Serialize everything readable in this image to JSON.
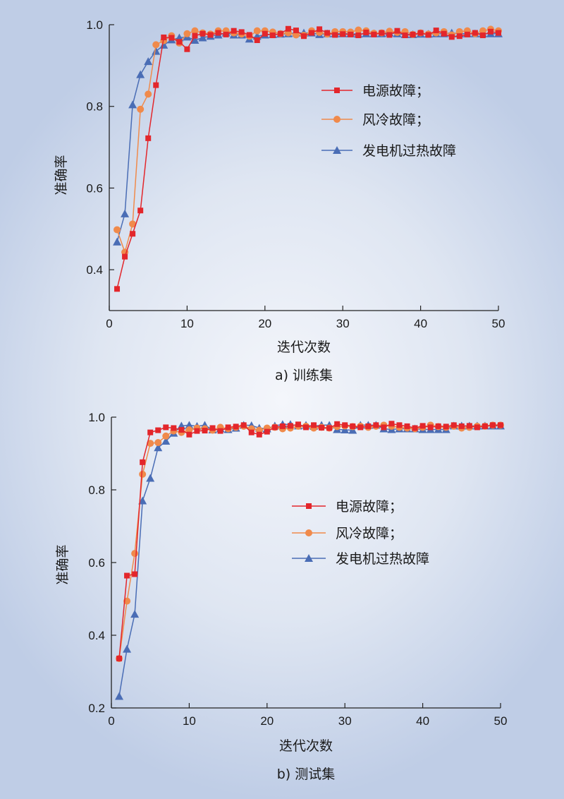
{
  "chart_data": [
    {
      "type": "line",
      "caption": "a) 训练集",
      "xlabel": "迭代次数",
      "ylabel": "准确率",
      "xlim": [
        0,
        50
      ],
      "ylim": [
        0.3,
        1.0
      ],
      "xticks": [
        0,
        10,
        20,
        30,
        40,
        50
      ],
      "yticks": [
        0.4,
        0.6,
        0.8,
        1.0
      ],
      "ytick_labels": [
        "0.4",
        "0.6",
        "0.8",
        "1.0"
      ],
      "legend_position": "right",
      "series": [
        {
          "name": "电源故障；",
          "color": "#e3262b",
          "marker": "square",
          "x": [
            1,
            2,
            3,
            4,
            5,
            6,
            7,
            8,
            9,
            10,
            11,
            12,
            13,
            14,
            15,
            16,
            17,
            18,
            19,
            20,
            21,
            22,
            23,
            24,
            25,
            26,
            27,
            28,
            29,
            30,
            31,
            32,
            33,
            34,
            35,
            36,
            37,
            38,
            39,
            40,
            41,
            42,
            43,
            44,
            45,
            46,
            47,
            48,
            49,
            50
          ],
          "values": [
            0.353,
            0.432,
            0.488,
            0.545,
            0.722,
            0.852,
            0.969,
            0.968,
            0.958,
            0.94,
            0.973,
            0.978,
            0.975,
            0.98,
            0.976,
            0.985,
            0.982,
            0.975,
            0.962,
            0.978,
            0.974,
            0.978,
            0.99,
            0.986,
            0.972,
            0.98,
            0.989,
            0.98,
            0.975,
            0.977,
            0.976,
            0.974,
            0.981,
            0.976,
            0.98,
            0.975,
            0.985,
            0.974,
            0.976,
            0.98,
            0.975,
            0.986,
            0.978,
            0.97,
            0.972,
            0.976,
            0.98,
            0.974,
            0.983,
            0.98
          ]
        },
        {
          "name": "风冷故障；",
          "color": "#f08a4b",
          "marker": "circle",
          "x": [
            1,
            2,
            3,
            4,
            5,
            6,
            7,
            8,
            9,
            10,
            11,
            12,
            13,
            14,
            15,
            16,
            17,
            18,
            19,
            20,
            21,
            22,
            23,
            24,
            25,
            26,
            27,
            28,
            29,
            30,
            31,
            32,
            33,
            34,
            35,
            36,
            37,
            38,
            39,
            40,
            41,
            42,
            43,
            44,
            45,
            46,
            47,
            48,
            49,
            50
          ],
          "values": [
            0.498,
            0.443,
            0.512,
            0.793,
            0.83,
            0.951,
            0.961,
            0.973,
            0.955,
            0.978,
            0.985,
            0.98,
            0.977,
            0.985,
            0.985,
            0.98,
            0.977,
            0.972,
            0.985,
            0.985,
            0.982,
            0.978,
            0.98,
            0.975,
            0.974,
            0.985,
            0.981,
            0.977,
            0.983,
            0.983,
            0.982,
            0.987,
            0.985,
            0.979,
            0.98,
            0.984,
            0.981,
            0.983,
            0.976,
            0.98,
            0.977,
            0.98,
            0.983,
            0.975,
            0.983,
            0.985,
            0.978,
            0.985,
            0.989,
            0.985
          ]
        },
        {
          "name": "发电机过热故障",
          "color": "#4a6db5",
          "marker": "triangle",
          "x": [
            1,
            2,
            3,
            4,
            5,
            6,
            7,
            8,
            9,
            10,
            11,
            12,
            13,
            14,
            15,
            16,
            17,
            18,
            19,
            20,
            21,
            22,
            23,
            24,
            25,
            26,
            27,
            28,
            29,
            30,
            31,
            32,
            33,
            34,
            35,
            36,
            37,
            38,
            39,
            40,
            41,
            42,
            43,
            44,
            45,
            46,
            47,
            48,
            49,
            50
          ],
          "values": [
            0.468,
            0.537,
            0.804,
            0.878,
            0.91,
            0.935,
            0.95,
            0.963,
            0.968,
            0.97,
            0.962,
            0.968,
            0.972,
            0.975,
            0.98,
            0.975,
            0.975,
            0.965,
            0.972,
            0.975,
            0.976,
            0.977,
            0.978,
            0.98,
            0.98,
            0.98,
            0.976,
            0.978,
            0.978,
            0.978,
            0.978,
            0.977,
            0.978,
            0.978,
            0.978,
            0.98,
            0.978,
            0.976,
            0.976,
            0.977,
            0.977,
            0.978,
            0.978,
            0.98,
            0.978,
            0.978,
            0.978,
            0.978,
            0.978,
            0.978
          ]
        }
      ]
    },
    {
      "type": "line",
      "caption": "b) 测试集",
      "xlabel": "迭代次数",
      "ylabel": "准确率",
      "xlim": [
        0,
        50
      ],
      "ylim": [
        0.2,
        1.0
      ],
      "xticks": [
        0,
        10,
        20,
        30,
        40,
        50
      ],
      "yticks": [
        0.2,
        0.4,
        0.6,
        0.8,
        1.0
      ],
      "ytick_labels": [
        "0.2",
        "0.4",
        "0.6",
        "0.8",
        "1.0"
      ],
      "legend_position": "right",
      "series": [
        {
          "name": "电源故障；",
          "color": "#e3262b",
          "marker": "square",
          "x": [
            1,
            2,
            3,
            4,
            5,
            6,
            7,
            8,
            9,
            10,
            11,
            12,
            13,
            14,
            15,
            16,
            17,
            18,
            19,
            20,
            21,
            22,
            23,
            24,
            25,
            26,
            27,
            28,
            29,
            30,
            31,
            32,
            33,
            34,
            35,
            36,
            37,
            38,
            39,
            40,
            41,
            42,
            43,
            44,
            45,
            46,
            47,
            48,
            49,
            50
          ],
          "values": [
            0.336,
            0.564,
            0.568,
            0.876,
            0.958,
            0.964,
            0.972,
            0.97,
            0.965,
            0.952,
            0.962,
            0.963,
            0.97,
            0.962,
            0.972,
            0.974,
            0.978,
            0.958,
            0.952,
            0.96,
            0.972,
            0.975,
            0.976,
            0.98,
            0.972,
            0.978,
            0.971,
            0.97,
            0.981,
            0.978,
            0.975,
            0.972,
            0.975,
            0.978,
            0.972,
            0.982,
            0.978,
            0.975,
            0.97,
            0.976,
            0.972,
            0.975,
            0.974,
            0.978,
            0.975,
            0.976,
            0.972,
            0.975,
            0.978,
            0.978
          ]
        },
        {
          "name": "风冷故障；",
          "color": "#f08a4b",
          "marker": "circle",
          "x": [
            1,
            2,
            3,
            4,
            5,
            6,
            7,
            8,
            9,
            10,
            11,
            12,
            13,
            14,
            15,
            16,
            17,
            18,
            19,
            20,
            21,
            22,
            23,
            24,
            25,
            26,
            27,
            28,
            29,
            30,
            31,
            32,
            33,
            34,
            35,
            36,
            37,
            38,
            39,
            40,
            41,
            42,
            43,
            44,
            45,
            46,
            47,
            48,
            49,
            50
          ],
          "values": [
            0.336,
            0.494,
            0.625,
            0.843,
            0.928,
            0.93,
            0.948,
            0.962,
            0.958,
            0.965,
            0.97,
            0.968,
            0.964,
            0.972,
            0.968,
            0.972,
            0.975,
            0.968,
            0.964,
            0.97,
            0.972,
            0.968,
            0.97,
            0.975,
            0.975,
            0.97,
            0.972,
            0.97,
            0.974,
            0.976,
            0.974,
            0.975,
            0.972,
            0.975,
            0.978,
            0.975,
            0.972,
            0.97,
            0.968,
            0.972,
            0.978,
            0.974,
            0.972,
            0.975,
            0.97,
            0.972,
            0.975,
            0.975,
            0.978,
            0.978
          ]
        },
        {
          "name": "发电机过热故障",
          "color": "#4a6db5",
          "marker": "triangle",
          "x": [
            1,
            2,
            3,
            4,
            5,
            6,
            7,
            8,
            9,
            10,
            11,
            12,
            13,
            14,
            15,
            16,
            17,
            18,
            19,
            20,
            21,
            22,
            23,
            24,
            25,
            26,
            27,
            28,
            29,
            30,
            31,
            32,
            33,
            34,
            35,
            36,
            37,
            38,
            39,
            40,
            41,
            42,
            43,
            44,
            45,
            46,
            47,
            48,
            49,
            50
          ],
          "values": [
            0.232,
            0.362,
            0.458,
            0.77,
            0.832,
            0.916,
            0.934,
            0.956,
            0.976,
            0.978,
            0.975,
            0.978,
            0.965,
            0.968,
            0.966,
            0.97,
            0.978,
            0.977,
            0.97,
            0.968,
            0.976,
            0.98,
            0.98,
            0.976,
            0.978,
            0.975,
            0.978,
            0.978,
            0.966,
            0.965,
            0.964,
            0.978,
            0.978,
            0.978,
            0.968,
            0.966,
            0.968,
            0.968,
            0.968,
            0.966,
            0.966,
            0.966,
            0.966,
            0.976,
            0.976,
            0.976,
            0.976,
            0.976,
            0.976,
            0.976
          ]
        }
      ]
    }
  ]
}
